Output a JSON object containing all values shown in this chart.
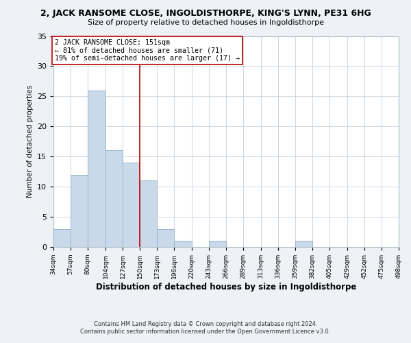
{
  "title": "2, JACK RANSOME CLOSE, INGOLDISTHORPE, KING'S LYNN, PE31 6HG",
  "subtitle": "Size of property relative to detached houses in Ingoldisthorpe",
  "xlabel": "Distribution of detached houses by size in Ingoldisthorpe",
  "ylabel": "Number of detached properties",
  "bin_edges": [
    34,
    57,
    80,
    104,
    127,
    150,
    173,
    196,
    220,
    243,
    266,
    289,
    313,
    336,
    359,
    382,
    405,
    429,
    452,
    475,
    498
  ],
  "bar_heights": [
    3,
    12,
    26,
    16,
    14,
    11,
    3,
    1,
    0,
    1,
    0,
    0,
    0,
    0,
    1,
    0,
    0,
    0,
    0,
    0
  ],
  "bar_color": "#c9d9e9",
  "bar_edge_color": "#9ab5c8",
  "vline_x": 150,
  "vline_color": "#bb0000",
  "annotation_title": "2 JACK RANSOME CLOSE: 151sqm",
  "annotation_line1": "← 81% of detached houses are smaller (71)",
  "annotation_line2": "19% of semi-detached houses are larger (17) →",
  "annotation_box_color": "#ffffff",
  "annotation_box_edge": "#bb0000",
  "ylim": [
    0,
    35
  ],
  "yticks": [
    0,
    5,
    10,
    15,
    20,
    25,
    30,
    35
  ],
  "tick_labels": [
    "34sqm",
    "57sqm",
    "80sqm",
    "104sqm",
    "127sqm",
    "150sqm",
    "173sqm",
    "196sqm",
    "220sqm",
    "243sqm",
    "266sqm",
    "289sqm",
    "313sqm",
    "336sqm",
    "359sqm",
    "382sqm",
    "405sqm",
    "429sqm",
    "452sqm",
    "475sqm",
    "498sqm"
  ],
  "footer1": "Contains HM Land Registry data © Crown copyright and database right 2024.",
  "footer2": "Contains public sector information licensed under the Open Government Licence v3.0.",
  "bg_color": "#eef2f6",
  "plot_bg_color": "#ffffff",
  "grid_color": "#c5d0dc"
}
